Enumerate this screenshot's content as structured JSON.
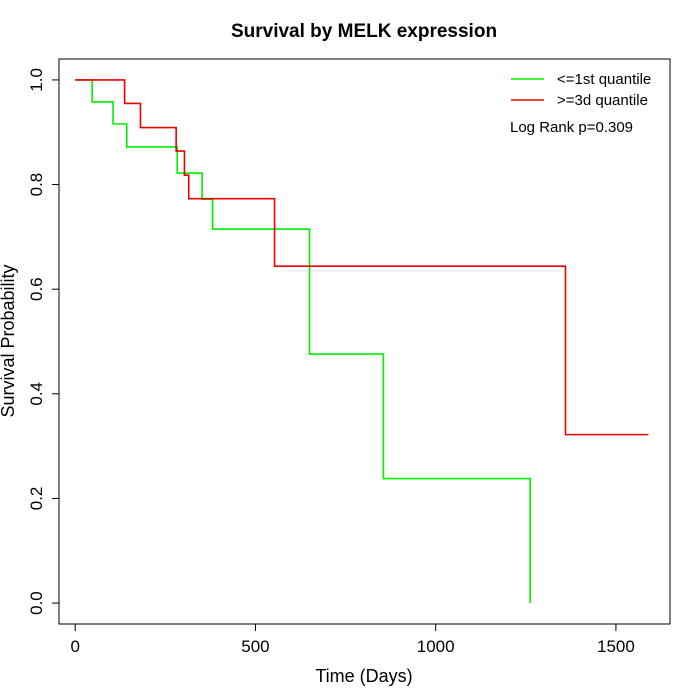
{
  "chart_data": {
    "type": "line",
    "title": "Survival by MELK expression",
    "xlabel": "Time (Days)",
    "ylabel": "Survival Probability",
    "xlim": [
      -45,
      1650
    ],
    "ylim": [
      -0.04,
      1.04
    ],
    "xticks": [
      "0",
      "500",
      "1000",
      "1500"
    ],
    "xtick_values": [
      0,
      500,
      1000,
      1500
    ],
    "yticks": [
      "0.0",
      "0.2",
      "0.4",
      "0.6",
      "0.8",
      "1.0"
    ],
    "ytick_values": [
      0,
      0.2,
      0.4,
      0.6,
      0.8,
      1.0
    ],
    "grid": false,
    "legend_position": "top-right",
    "annotation": "Log Rank p=0.309",
    "series": [
      {
        "name": "<=1st quantile",
        "color": "#00ee00",
        "step": true,
        "x": [
          0,
          47,
          105,
          143,
          283,
          352,
          381,
          650,
          855,
          1262,
          1262
        ],
        "y": [
          1.0,
          0.958,
          0.916,
          0.872,
          0.822,
          0.772,
          0.715,
          0.476,
          0.238,
          0.238,
          0.0
        ]
      },
      {
        "name": ">=3d quantile",
        "color": "#ee0000",
        "step": true,
        "x": [
          0,
          137,
          181,
          280,
          303,
          315,
          553,
          1360,
          1590
        ],
        "y": [
          1.0,
          0.955,
          0.909,
          0.864,
          0.818,
          0.773,
          0.644,
          0.322,
          0.322
        ]
      }
    ]
  }
}
